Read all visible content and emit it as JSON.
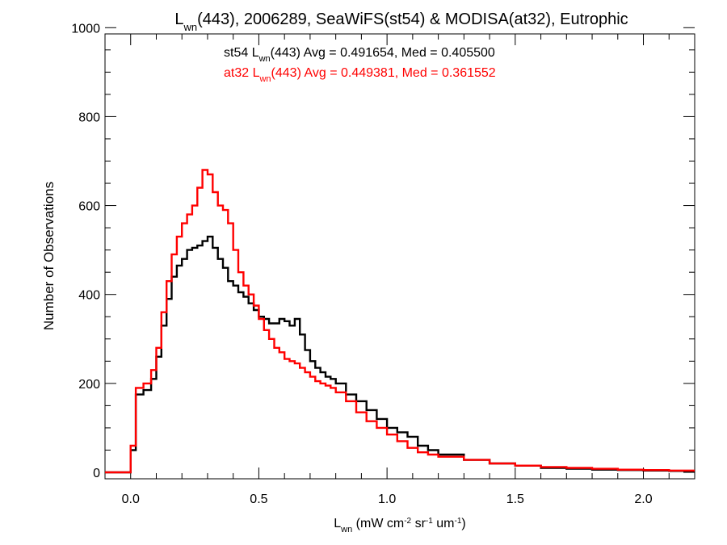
{
  "chart_data": {
    "type": "line",
    "title": {
      "pre": "L",
      "sub": "wn",
      "post": "(443), 2006289, SeaWiFS(st54) & MODISA(at32), Eutrophic"
    },
    "xlabel": {
      "pre": "L",
      "sub": "wn",
      "parts": [
        {
          "text": " (mW cm",
          "sup": "-2"
        },
        {
          "text": " sr",
          "sup": "-1"
        },
        {
          "text": " um",
          "sup": "-1"
        },
        {
          "text": ")",
          "sup": ""
        }
      ]
    },
    "ylabel": "Number of Observations",
    "xlim": [
      -0.1,
      2.2
    ],
    "ylim": [
      0,
      1000
    ],
    "xticks": [
      "0.0",
      "0.5",
      "1.0",
      "1.5",
      "2.0"
    ],
    "yticks": [
      "0",
      "200",
      "400",
      "600",
      "800",
      "1000"
    ],
    "grid": false,
    "legend_position": "top-center",
    "series": [
      {
        "name": "st54",
        "color": "#000000",
        "label": {
          "pre": "st54 L",
          "sub": "wn",
          "post": "(443) Avg = 0.491654, Med = 0.405500"
        },
        "x": [
          -0.1,
          -0.005,
          0.0,
          0.02,
          0.05,
          0.08,
          0.1,
          0.12,
          0.14,
          0.16,
          0.18,
          0.2,
          0.22,
          0.24,
          0.26,
          0.28,
          0.3,
          0.32,
          0.34,
          0.36,
          0.38,
          0.4,
          0.42,
          0.44,
          0.46,
          0.48,
          0.5,
          0.52,
          0.54,
          0.56,
          0.58,
          0.6,
          0.62,
          0.64,
          0.66,
          0.68,
          0.7,
          0.72,
          0.74,
          0.76,
          0.78,
          0.8,
          0.84,
          0.88,
          0.92,
          0.96,
          1.0,
          1.04,
          1.08,
          1.12,
          1.16,
          1.2,
          1.3,
          1.4,
          1.5,
          1.6,
          1.7,
          1.8,
          1.9,
          2.0,
          2.1,
          2.2
        ],
        "y": [
          0,
          0,
          50,
          175,
          185,
          210,
          260,
          330,
          390,
          440,
          465,
          480,
          500,
          505,
          510,
          520,
          530,
          505,
          480,
          460,
          430,
          420,
          405,
          395,
          380,
          365,
          350,
          345,
          335,
          335,
          345,
          340,
          330,
          345,
          310,
          275,
          250,
          235,
          225,
          215,
          210,
          200,
          175,
          160,
          140,
          120,
          100,
          90,
          80,
          60,
          50,
          40,
          28,
          20,
          15,
          10,
          8,
          6,
          5,
          4,
          3,
          3
        ]
      },
      {
        "name": "at32",
        "color": "#ff0000",
        "label": {
          "pre": "at32 L",
          "sub": "wn",
          "post": "(443) Avg = 0.449381, Med = 0.361552"
        },
        "x": [
          -0.1,
          -0.005,
          0.0,
          0.02,
          0.05,
          0.08,
          0.1,
          0.12,
          0.14,
          0.16,
          0.18,
          0.2,
          0.22,
          0.24,
          0.26,
          0.28,
          0.3,
          0.32,
          0.34,
          0.36,
          0.38,
          0.4,
          0.42,
          0.44,
          0.46,
          0.48,
          0.5,
          0.52,
          0.54,
          0.56,
          0.58,
          0.6,
          0.62,
          0.64,
          0.66,
          0.68,
          0.7,
          0.72,
          0.74,
          0.76,
          0.78,
          0.8,
          0.84,
          0.88,
          0.92,
          0.96,
          1.0,
          1.04,
          1.08,
          1.12,
          1.16,
          1.2,
          1.3,
          1.4,
          1.5,
          1.6,
          1.7,
          1.8,
          1.9,
          2.0,
          2.1,
          2.2
        ],
        "y": [
          0,
          0,
          60,
          190,
          200,
          230,
          280,
          360,
          430,
          490,
          530,
          560,
          580,
          600,
          640,
          680,
          670,
          630,
          600,
          590,
          560,
          500,
          450,
          420,
          400,
          375,
          345,
          320,
          300,
          280,
          270,
          255,
          250,
          245,
          235,
          225,
          215,
          205,
          200,
          195,
          190,
          180,
          160,
          135,
          115,
          100,
          85,
          70,
          55,
          45,
          40,
          35,
          28,
          20,
          15,
          12,
          10,
          8,
          6,
          5,
          4,
          3
        ]
      }
    ]
  }
}
